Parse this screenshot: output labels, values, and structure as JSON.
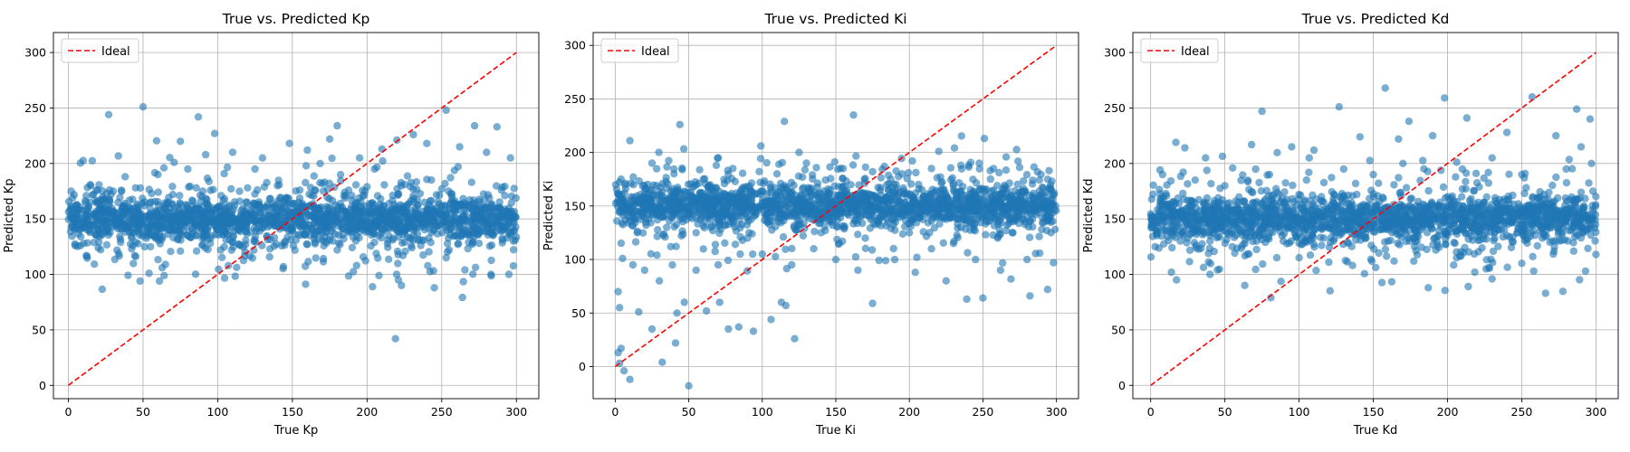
{
  "chart_data": [
    {
      "type": "scatter",
      "title": "True vs. Predicted Kp",
      "xlabel": "True Kp",
      "ylabel": "Predicted Kp",
      "xlim": [
        -10,
        315
      ],
      "ylim": [
        -12,
        318
      ],
      "xticks": [
        "0",
        "50",
        "100",
        "150",
        "200",
        "250",
        "300"
      ],
      "yticks": [
        "0",
        "50",
        "100",
        "150",
        "200",
        "250",
        "300"
      ],
      "grid": true,
      "legend": {
        "placement": "top-left",
        "entries": [
          "Ideal"
        ]
      },
      "ideal_line": {
        "x": [
          0,
          300
        ],
        "y": [
          0,
          300
        ],
        "color": "#ff0000",
        "style": "dashed"
      },
      "marker_color": "#1f77b4",
      "series": [
        {
          "description_points": "core cloud y≈150 ±15 across x 0–300 plus scattered outliers",
          "points": [
            [
              27,
              244
            ],
            [
              50,
              251
            ],
            [
              87,
              242
            ],
            [
              98,
              227
            ],
            [
              180,
              234
            ],
            [
              253,
              248
            ],
            [
              231,
              226
            ],
            [
              219,
              42
            ],
            [
              221,
              95
            ],
            [
              223,
              90
            ],
            [
              208,
              99
            ],
            [
              245,
              88
            ],
            [
              295,
              100
            ],
            [
              283,
              100
            ],
            [
              272,
              234
            ],
            [
              287,
              233
            ],
            [
              48,
              94
            ],
            [
              61,
              94
            ],
            [
              54,
              101
            ],
            [
              65,
              109
            ],
            [
              144,
              107
            ],
            [
              193,
              108
            ],
            [
              253,
              115
            ],
            [
              236,
              126
            ],
            [
              165,
              129
            ],
            [
              102,
              122
            ],
            [
              12,
              117
            ],
            [
              4,
              143
            ],
            [
              38,
              188
            ],
            [
              60,
              190
            ],
            [
              80,
              195
            ],
            [
              75,
              220
            ],
            [
              110,
              210
            ],
            [
              130,
              205
            ],
            [
              148,
              218
            ],
            [
              160,
              212
            ],
            [
              175,
              222
            ],
            [
              195,
              205
            ],
            [
              210,
              213
            ],
            [
              220,
              221
            ],
            [
              240,
              218
            ],
            [
              262,
              215
            ],
            [
              280,
              210
            ],
            [
              296,
              205
            ],
            [
              15,
              180
            ],
            [
              30,
              175
            ],
            [
              45,
              178
            ],
            [
              70,
              172
            ],
            [
              90,
              175
            ],
            [
              120,
              178
            ],
            [
              140,
              180
            ],
            [
              155,
              176
            ],
            [
              170,
              182
            ],
            [
              185,
              174
            ],
            [
              200,
              179
            ],
            [
              225,
              181
            ],
            [
              250,
              177
            ],
            [
              270,
              183
            ],
            [
              290,
              176
            ],
            [
              8,
              126
            ],
            [
              20,
              124
            ],
            [
              35,
              129
            ],
            [
              55,
              125
            ],
            [
              75,
              121
            ],
            [
              95,
              128
            ],
            [
              115,
              126
            ],
            [
              135,
              123
            ],
            [
              160,
              127
            ],
            [
              180,
              122
            ],
            [
              205,
              129
            ],
            [
              230,
              124
            ],
            [
              255,
              122
            ],
            [
              275,
              128
            ],
            [
              298,
              130
            ],
            [
              25,
              160
            ],
            [
              100,
              160
            ],
            [
              150,
              140
            ],
            [
              200,
              140
            ],
            [
              260,
              160
            ],
            [
              125,
              195
            ],
            [
              64,
              196
            ],
            [
              205,
              195
            ],
            [
              261,
              197
            ]
          ]
        }
      ]
    },
    {
      "type": "scatter",
      "title": "True vs. Predicted Ki",
      "xlabel": "True Ki",
      "ylabel": "Predicted Ki",
      "xlim": [
        -15,
        315
      ],
      "ylim": [
        -30,
        312
      ],
      "xticks": [
        "0",
        "50",
        "100",
        "150",
        "200",
        "250",
        "300"
      ],
      "yticks": [
        "0",
        "50",
        "100",
        "150",
        "200",
        "250",
        "300"
      ],
      "grid": true,
      "legend": {
        "placement": "top-left",
        "entries": [
          "Ideal"
        ]
      },
      "ideal_line": {
        "x": [
          0,
          300
        ],
        "y": [
          0,
          300
        ],
        "color": "#ff0000",
        "style": "dashed"
      },
      "marker_color": "#1f77b4",
      "series": [
        {
          "points": [
            [
              44,
              226
            ],
            [
              115,
              229
            ],
            [
              162,
              235
            ],
            [
              251,
              213
            ],
            [
              183,
              187
            ],
            [
              99,
              206
            ],
            [
              10,
              211
            ],
            [
              4,
              175
            ],
            [
              50,
              -18
            ],
            [
              10,
              -12
            ],
            [
              6,
              -4
            ],
            [
              3,
              3
            ],
            [
              2,
              13
            ],
            [
              4,
              17
            ],
            [
              32,
              4
            ],
            [
              41,
              22
            ],
            [
              25,
              35
            ],
            [
              16,
              51
            ],
            [
              42,
              50
            ],
            [
              47,
              60
            ],
            [
              62,
              52
            ],
            [
              71,
              60
            ],
            [
              84,
              37
            ],
            [
              94,
              33
            ],
            [
              106,
              44
            ],
            [
              113,
              60
            ],
            [
              116,
              57
            ],
            [
              122,
              26
            ],
            [
              77,
              35
            ],
            [
              175,
              59
            ],
            [
              282,
              66
            ],
            [
              250,
              64
            ],
            [
              239,
              63
            ],
            [
              294,
              72
            ],
            [
              262,
              90
            ],
            [
              204,
              88
            ],
            [
              165,
              90
            ],
            [
              150,
              100
            ],
            [
              135,
              110
            ],
            [
              120,
              95
            ],
            [
              100,
              105
            ],
            [
              85,
              105
            ],
            [
              70,
              95
            ],
            [
              55,
              90
            ],
            [
              30,
              80
            ],
            [
              20,
              90
            ],
            [
              12,
              95
            ],
            [
              5,
              101
            ],
            [
              2,
              70
            ],
            [
              3,
              55
            ],
            [
              190,
              100
            ],
            [
              215,
              110
            ],
            [
              230,
              115
            ],
            [
              260,
              120
            ],
            [
              280,
              100
            ],
            [
              298,
              97
            ],
            [
              225,
              80
            ],
            [
              245,
              100
            ],
            [
              55,
              125
            ],
            [
              65,
              130
            ],
            [
              90,
              120
            ],
            [
              140,
              125
            ],
            [
              170,
              120
            ],
            [
              200,
              125
            ],
            [
              235,
              130
            ],
            [
              270,
              125
            ],
            [
              290,
              128
            ],
            [
              15,
              125
            ],
            [
              35,
              130
            ],
            [
              40,
              180
            ],
            [
              60,
              175
            ],
            [
              80,
              185
            ],
            [
              110,
              180
            ],
            [
              130,
              190
            ],
            [
              155,
              185
            ],
            [
              175,
              182
            ],
            [
              195,
              180
            ],
            [
              215,
              185
            ],
            [
              235,
              188
            ],
            [
              255,
              183
            ],
            [
              275,
              186
            ],
            [
              295,
              183
            ],
            [
              25,
              190
            ],
            [
              70,
              195
            ],
            [
              125,
              200
            ],
            [
              220,
              201
            ]
          ]
        }
      ]
    },
    {
      "type": "scatter",
      "title": "True vs. Predicted Kd",
      "xlabel": "True Kd",
      "ylabel": "Predicted Kd",
      "xlim": [
        -12,
        315
      ],
      "ylim": [
        -12,
        318
      ],
      "xticks": [
        "0",
        "50",
        "100",
        "150",
        "200",
        "250",
        "300"
      ],
      "yticks": [
        "0",
        "50",
        "100",
        "150",
        "200",
        "250",
        "300"
      ],
      "grid": true,
      "legend": {
        "placement": "top-left",
        "entries": [
          "Ideal"
        ]
      },
      "ideal_line": {
        "x": [
          0,
          300
        ],
        "y": [
          0,
          300
        ],
        "color": "#ff0000",
        "style": "dashed"
      },
      "marker_color": "#1f77b4",
      "series": [
        {
          "points": [
            [
              75,
              247
            ],
            [
              127,
              251
            ],
            [
              158,
              268
            ],
            [
              198,
              259
            ],
            [
              257,
              260
            ],
            [
              287,
              249
            ],
            [
              296,
              240
            ],
            [
              213,
              241
            ],
            [
              174,
              238
            ],
            [
              81,
              79
            ],
            [
              187,
              88
            ],
            [
              214,
              89
            ],
            [
              230,
              96
            ],
            [
              266,
              83
            ],
            [
              258,
              103
            ],
            [
              293,
              103
            ],
            [
              40,
              100
            ],
            [
              45,
              104
            ],
            [
              14,
              102
            ],
            [
              3,
              125
            ],
            [
              20,
              130
            ],
            [
              55,
              125
            ],
            [
              100,
              115
            ],
            [
              136,
              108
            ],
            [
              120,
              111
            ],
            [
              164,
              112
            ],
            [
              226,
              105
            ],
            [
              250,
              110
            ],
            [
              285,
              121
            ],
            [
              300,
              118
            ],
            [
              17,
              219
            ],
            [
              23,
              214
            ],
            [
              37,
              205
            ],
            [
              68,
              217
            ],
            [
              95,
              215
            ],
            [
              110,
              212
            ],
            [
              141,
              224
            ],
            [
              167,
              222
            ],
            [
              190,
              225
            ],
            [
              240,
              228
            ],
            [
              273,
              225
            ],
            [
              290,
              215
            ],
            [
              8,
              190
            ],
            [
              30,
              185
            ],
            [
              50,
              180
            ],
            [
              80,
              190
            ],
            [
              105,
              185
            ],
            [
              130,
              195
            ],
            [
              150,
              190
            ],
            [
              170,
              200
            ],
            [
              210,
              195
            ],
            [
              230,
              205
            ],
            [
              250,
              190
            ],
            [
              280,
              195
            ],
            [
              297,
              200
            ],
            [
              12,
              160
            ],
            [
              60,
              158
            ],
            [
              90,
              165
            ],
            [
              115,
              170
            ],
            [
              145,
              162
            ],
            [
              175,
              168
            ],
            [
              200,
              170
            ],
            [
              225,
              165
            ],
            [
              265,
              172
            ],
            [
              298,
              175
            ],
            [
              10,
              140
            ],
            [
              40,
              130
            ],
            [
              70,
              135
            ],
            [
              100,
              128
            ],
            [
              160,
              130
            ],
            [
              205,
              128
            ],
            [
              240,
              135
            ],
            [
              275,
              130
            ],
            [
              300,
              138
            ]
          ]
        }
      ]
    }
  ]
}
